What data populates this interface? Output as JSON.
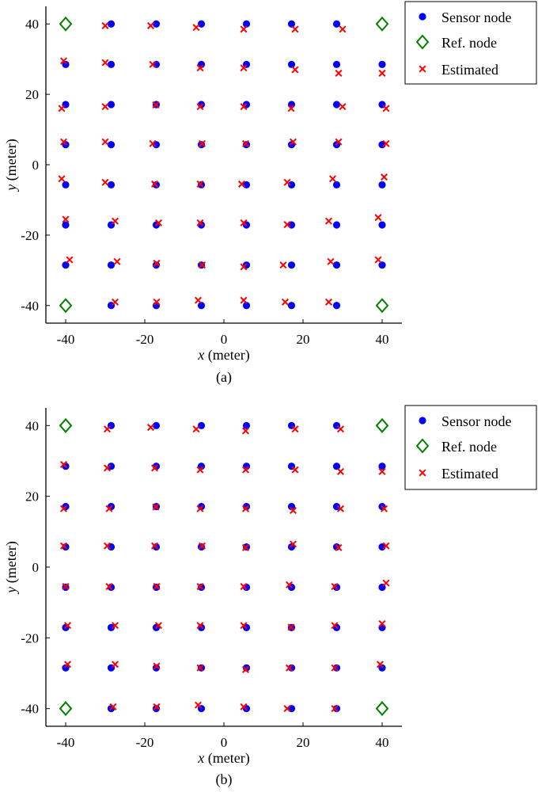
{
  "chart_data": [
    {
      "type": "scatter",
      "caption": "(a)",
      "xlabel": {
        "var": "x",
        "unit": "(meter)"
      },
      "ylabel": {
        "var": "y",
        "unit": "(meter)"
      },
      "xlim": [
        -45,
        45
      ],
      "ylim": [
        -45,
        45
      ],
      "xticks": [
        -40,
        -20,
        0,
        20,
        40
      ],
      "yticks": [
        -40,
        -20,
        0,
        20,
        40
      ],
      "legend_position": "top-right",
      "series": [
        {
          "name": "Sensor node",
          "marker": "dot",
          "color": "#0000ff",
          "x": [
            -28.5,
            -17.1,
            -5.7,
            5.7,
            17.1,
            28.5,
            -40,
            -28.5,
            -17.1,
            -5.7,
            5.7,
            17.1,
            28.5,
            40,
            -40,
            -28.5,
            -17.1,
            -5.7,
            5.7,
            17.1,
            28.5,
            40,
            -40,
            -28.5,
            -17.1,
            -5.7,
            5.7,
            17.1,
            28.5,
            40,
            -40,
            -28.5,
            -17.1,
            -5.7,
            5.7,
            17.1,
            28.5,
            40,
            -40,
            -28.5,
            -17.1,
            -5.7,
            5.7,
            17.1,
            28.5,
            40,
            -40,
            -28.5,
            -17.1,
            -5.7,
            5.7,
            17.1,
            28.5,
            40,
            -28.5,
            -17.1,
            -5.7,
            5.7,
            17.1,
            28.5
          ],
          "y": [
            40,
            40,
            40,
            40,
            40,
            40,
            28.5,
            28.5,
            28.5,
            28.5,
            28.5,
            28.5,
            28.5,
            28.5,
            17.1,
            17.1,
            17.1,
            17.1,
            17.1,
            17.1,
            17.1,
            17.1,
            5.7,
            5.7,
            5.7,
            5.7,
            5.7,
            5.7,
            5.7,
            5.7,
            -5.7,
            -5.7,
            -5.7,
            -5.7,
            -5.7,
            -5.7,
            -5.7,
            -5.7,
            -17.1,
            -17.1,
            -17.1,
            -17.1,
            -17.1,
            -17.1,
            -17.1,
            -17.1,
            -28.5,
            -28.5,
            -28.5,
            -28.5,
            -28.5,
            -28.5,
            -28.5,
            -28.5,
            -40,
            -40,
            -40,
            -40,
            -40,
            -40
          ]
        },
        {
          "name": "Ref. node",
          "marker": "diamond",
          "color": "#008000",
          "x": [
            -40,
            40,
            -40,
            40
          ],
          "y": [
            40,
            40,
            -40,
            -40
          ]
        },
        {
          "name": "Estimated",
          "marker": "x",
          "color": "#ff0000",
          "x": [
            -30,
            -18.5,
            -7,
            5,
            18,
            30,
            -40.5,
            -30,
            -18,
            -6,
            5,
            18,
            29,
            40,
            -41,
            -30,
            -17.2,
            -6,
            5,
            17,
            30,
            41,
            -40.5,
            -30,
            -18,
            -5.5,
            5.5,
            17.5,
            29,
            41,
            -41,
            -30,
            -17.5,
            -6,
            4.5,
            16,
            27.5,
            40.5,
            -40,
            -27.5,
            -16.5,
            -6,
            5,
            16,
            26.5,
            39,
            -39,
            -27,
            -17,
            -5.5,
            5,
            15,
            27,
            39,
            -27.5,
            -17,
            -6.5,
            5,
            15.5,
            26.5
          ],
          "y": [
            39.5,
            39.5,
            39,
            38.5,
            38.5,
            38.5,
            29.5,
            29,
            28.5,
            27.5,
            27.5,
            27,
            26,
            26,
            16,
            16.5,
            17,
            16.5,
            16.5,
            16,
            16.5,
            16,
            6.5,
            6.5,
            6,
            6,
            6,
            6.5,
            6.5,
            6,
            -4,
            -5,
            -5.5,
            -5.5,
            -5.5,
            -5,
            -4,
            -3.5,
            -15.5,
            -16,
            -16.5,
            -16.5,
            -16.5,
            -17,
            -16,
            -15,
            -27,
            -27.5,
            -28,
            -28.5,
            -29,
            -28.5,
            -27.5,
            -27,
            -39,
            -39,
            -38.5,
            -38.5,
            -39,
            -39
          ]
        }
      ]
    },
    {
      "type": "scatter",
      "caption": "(b)",
      "xlabel": {
        "var": "x",
        "unit": "(meter)"
      },
      "ylabel": {
        "var": "y",
        "unit": "(meter)"
      },
      "xlim": [
        -45,
        45
      ],
      "ylim": [
        -45,
        45
      ],
      "xticks": [
        -40,
        -20,
        0,
        20,
        40
      ],
      "yticks": [
        -40,
        -20,
        0,
        20,
        40
      ],
      "legend_position": "top-right",
      "series": [
        {
          "name": "Sensor node",
          "marker": "dot",
          "color": "#0000ff",
          "x": [
            -28.5,
            -17.1,
            -5.7,
            5.7,
            17.1,
            28.5,
            -40,
            -28.5,
            -17.1,
            -5.7,
            5.7,
            17.1,
            28.5,
            40,
            -40,
            -28.5,
            -17.1,
            -5.7,
            5.7,
            17.1,
            28.5,
            40,
            -40,
            -28.5,
            -17.1,
            -5.7,
            5.7,
            17.1,
            28.5,
            40,
            -40,
            -28.5,
            -17.1,
            -5.7,
            5.7,
            17.1,
            28.5,
            40,
            -40,
            -28.5,
            -17.1,
            -5.7,
            5.7,
            17.1,
            28.5,
            40,
            -40,
            -28.5,
            -17.1,
            -5.7,
            5.7,
            17.1,
            28.5,
            40,
            -28.5,
            -17.1,
            -5.7,
            5.7,
            17.1,
            28.5
          ],
          "y": [
            40,
            40,
            40,
            40,
            40,
            40,
            28.5,
            28.5,
            28.5,
            28.5,
            28.5,
            28.5,
            28.5,
            28.5,
            17.1,
            17.1,
            17.1,
            17.1,
            17.1,
            17.1,
            17.1,
            17.1,
            5.7,
            5.7,
            5.7,
            5.7,
            5.7,
            5.7,
            5.7,
            5.7,
            -5.7,
            -5.7,
            -5.7,
            -5.7,
            -5.7,
            -5.7,
            -5.7,
            -5.7,
            -17.1,
            -17.1,
            -17.1,
            -17.1,
            -17.1,
            -17.1,
            -17.1,
            -17.1,
            -28.5,
            -28.5,
            -28.5,
            -28.5,
            -28.5,
            -28.5,
            -28.5,
            -28.5,
            -40,
            -40,
            -40,
            -40,
            -40,
            -40
          ]
        },
        {
          "name": "Ref. node",
          "marker": "diamond",
          "color": "#008000",
          "x": [
            -40,
            40,
            -40,
            40
          ],
          "y": [
            40,
            40,
            -40,
            -40
          ]
        },
        {
          "name": "Estimated",
          "marker": "x",
          "color": "#ff0000",
          "x": [
            -29.5,
            -18.5,
            -7,
            5.5,
            18,
            29.5,
            -40.5,
            -29.5,
            -17.5,
            -6,
            5.5,
            18,
            29.5,
            40,
            -40.5,
            -29,
            -17.2,
            -6,
            5.5,
            17.5,
            29.5,
            40.5,
            -40.5,
            -29.5,
            -17.5,
            -5.5,
            5.5,
            17.5,
            29,
            41,
            -40,
            -29,
            -17,
            -6,
            5,
            16.5,
            28,
            41,
            -39.5,
            -27.5,
            -16.5,
            -6,
            5,
            17,
            28,
            40,
            -39.5,
            -27.5,
            -17,
            -6,
            5.5,
            16.5,
            28,
            39.5,
            -28,
            -17,
            -6.5,
            5,
            16,
            28
          ],
          "y": [
            39,
            39.5,
            39,
            38.5,
            39,
            39,
            29,
            28,
            28,
            27.5,
            27.5,
            27.5,
            27,
            27,
            16.5,
            16.5,
            17,
            16.5,
            16.5,
            16,
            16.5,
            16.5,
            6,
            6,
            6,
            6,
            5.5,
            6.5,
            5.5,
            6,
            -5.5,
            -5.5,
            -5.5,
            -5.5,
            -5.5,
            -5,
            -5.5,
            -4.5,
            -16.5,
            -16.5,
            -16.5,
            -16.5,
            -16.5,
            -17,
            -16.5,
            -16,
            -27.5,
            -27.5,
            -28,
            -28.5,
            -29,
            -28.5,
            -28.5,
            -27.5,
            -39.5,
            -39.5,
            -39,
            -39.5,
            -40,
            -40
          ]
        }
      ]
    }
  ]
}
